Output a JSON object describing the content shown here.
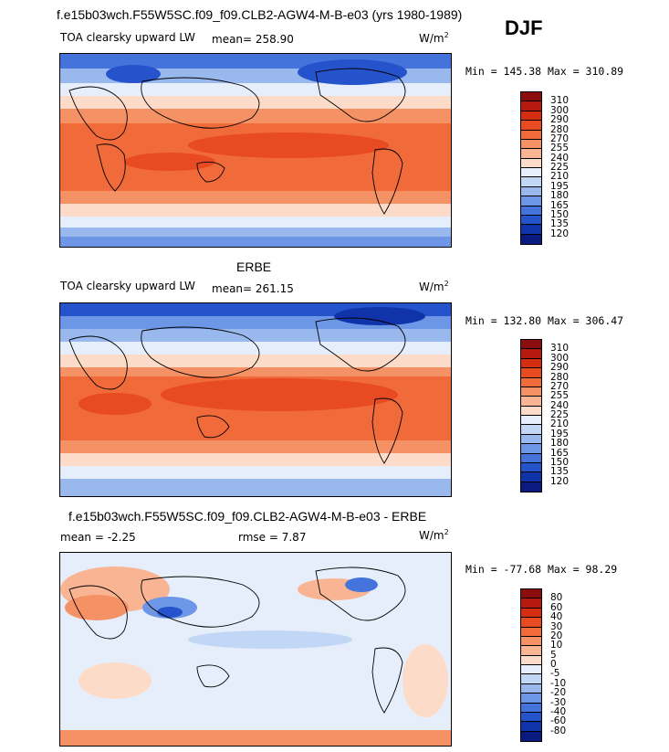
{
  "season": "DJF",
  "panels": [
    {
      "title": "f.e15b03wch.F55W5SC.f09_f09.CLB2-AGW4-M-B-e03 (yrs 1980-1989)",
      "left_label": "TOA clearsky upward LW",
      "mean_text": "mean= 258.90",
      "units_base": "W/m",
      "units_exp": "2",
      "minmax": "Min = 145.38 Max = 310.89",
      "levels": [
        "310",
        "300",
        "290",
        "280",
        "270",
        "255",
        "240",
        "225",
        "210",
        "195",
        "180",
        "165",
        "150",
        "135",
        "120"
      ],
      "colors": [
        "#8c0d0d",
        "#b5190f",
        "#d42d12",
        "#e84a22",
        "#f06a3a",
        "#f59265",
        "#f9b593",
        "#fcdcc8",
        "#e6eefb",
        "#c2d6f5",
        "#98b8ee",
        "#6d96e6",
        "#4473dc",
        "#2553cc",
        "#1133aa",
        "#0a1a80"
      ]
    },
    {
      "title": "ERBE",
      "left_label": "TOA clearsky upward LW",
      "mean_text": "mean= 261.15",
      "units_base": "W/m",
      "units_exp": "2",
      "minmax": "Min = 132.80 Max = 306.47",
      "levels": [
        "310",
        "300",
        "290",
        "280",
        "270",
        "255",
        "240",
        "225",
        "210",
        "195",
        "180",
        "165",
        "150",
        "135",
        "120"
      ],
      "colors": [
        "#8c0d0d",
        "#b5190f",
        "#d42d12",
        "#e84a22",
        "#f06a3a",
        "#f59265",
        "#f9b593",
        "#fcdcc8",
        "#e6eefb",
        "#c2d6f5",
        "#98b8ee",
        "#6d96e6",
        "#4473dc",
        "#2553cc",
        "#1133aa",
        "#0a1a80"
      ]
    },
    {
      "title": "f.e15b03wch.F55W5SC.f09_f09.CLB2-AGW4-M-B-e03 - ERBE",
      "left_label": "mean =   -2.25",
      "mean_text": "rmse =    7.87",
      "units_base": "W/m",
      "units_exp": "2",
      "minmax": "Min = -77.68 Max =  98.29",
      "levels": [
        "80",
        "60",
        "40",
        "30",
        "20",
        "10",
        "5",
        "0",
        "-5",
        "-10",
        "-20",
        "-30",
        "-40",
        "-60",
        "-80"
      ],
      "colors": [
        "#8c0d0d",
        "#b5190f",
        "#d42d12",
        "#e84a22",
        "#f06a3a",
        "#f59265",
        "#f9b593",
        "#fcdcc8",
        "#e6eefb",
        "#c2d6f5",
        "#98b8ee",
        "#6d96e6",
        "#4473dc",
        "#2553cc",
        "#1133aa",
        "#0a1a80"
      ]
    }
  ]
}
